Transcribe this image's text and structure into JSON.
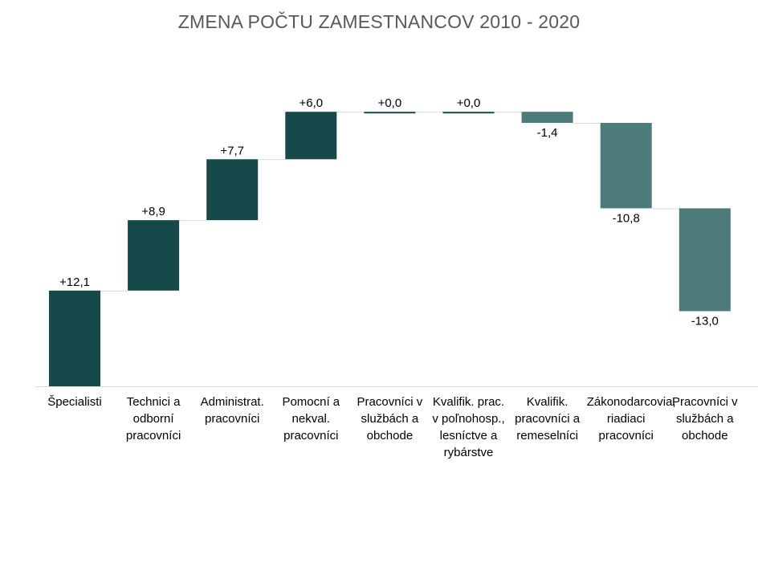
{
  "chart_data": {
    "type": "waterfall",
    "title": "ZMENA POČTU ZAMESTNANCOV 2010 - 2020",
    "xlabel": "",
    "ylabel": "",
    "categories": [
      "Špecialisti",
      "Technici a odborní pracovníci",
      "Administrat. pracovníci",
      "Pomocní a nekval. pracovníci",
      "Pracovníci v službách a obchode",
      "Kvalifik. prac. v poľnohosp., lesníctve a rybárstve",
      "Kvalifik. pracovníci a remeselníci",
      "Zákonodarcovia, riadiaci pracovníci",
      "Pracovníci v službách a obchode"
    ],
    "values": [
      12.1,
      8.9,
      7.7,
      6.0,
      0.0,
      0.0,
      -1.4,
      -10.8,
      -13.0
    ],
    "data_labels": [
      "+12,1",
      "+8,9",
      "+7,7",
      "+6,0",
      "+0,0",
      "+0,0",
      "-1,4",
      "-10,8",
      "-13,0"
    ],
    "cumulative_range": [
      0,
      34.7
    ],
    "grid": false,
    "legend": "none",
    "colors": {
      "increase": "#15494A",
      "decrease": "#4D7B7C",
      "connector": "#D9D9D9",
      "axis": "#D9D9D9"
    }
  }
}
